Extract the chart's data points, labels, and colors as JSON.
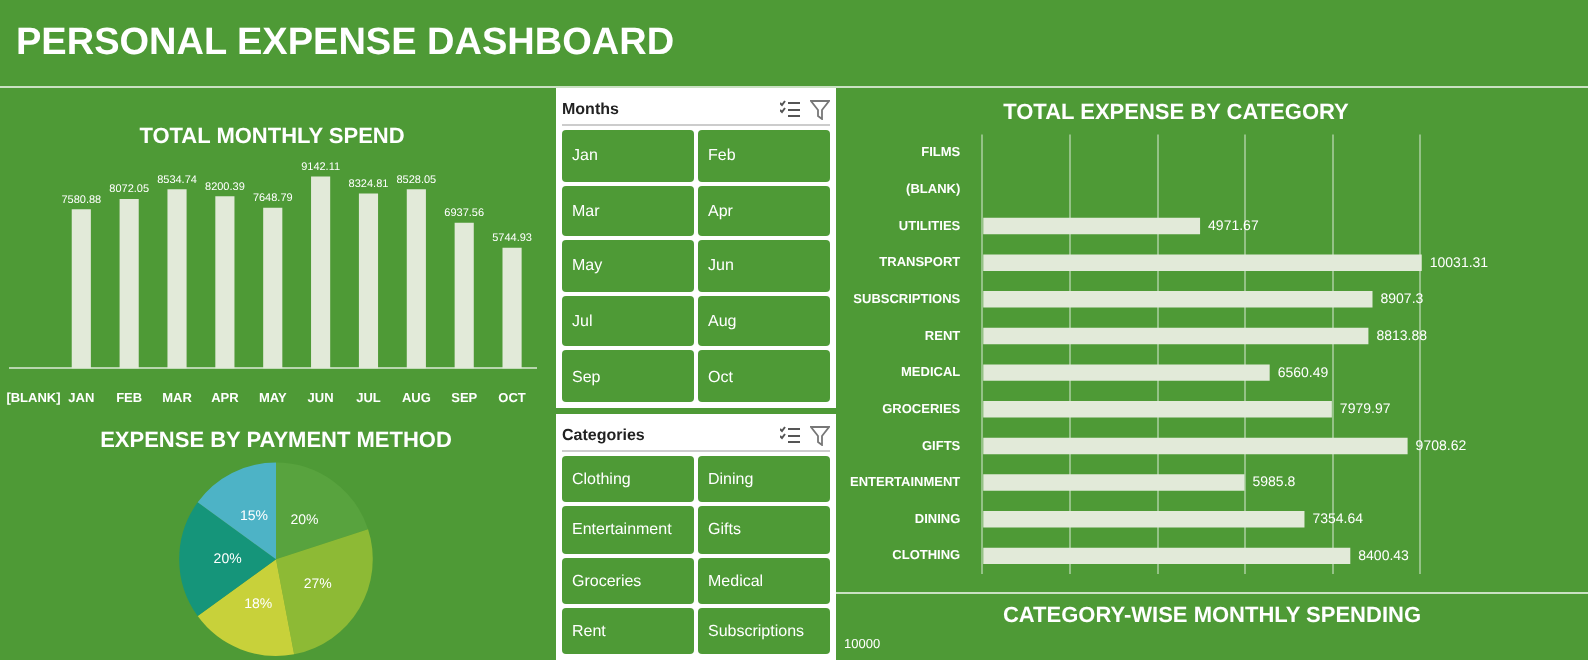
{
  "chart_data": [
    {
      "type": "other",
      "title": "PERSONAL EXPENSE DASHBOARD"
    },
    {
      "type": "bar",
      "title": "TOTAL MONTHLY SPEND",
      "categories": [
        "[BLANK]",
        "JAN",
        "FEB",
        "MAR",
        "APR",
        "MAY",
        "JUN",
        "JUL",
        "AUG",
        "SEP",
        "OCT"
      ],
      "values": [
        null,
        7580.88,
        8072.05,
        8534.74,
        8200.39,
        7648.79,
        9142.11,
        8324.81,
        8528.05,
        6937.56,
        5744.93
      ],
      "color": "#e2ead9",
      "data_labels": true
    },
    {
      "type": "other",
      "title": "Months",
      "annotations": [
        "Jan",
        "Feb",
        "Mar",
        "Apr",
        "May",
        "Jun",
        "Jul",
        "Aug",
        "Sep",
        "Oct"
      ]
    },
    {
      "type": "bar",
      "orientation": "horizontal",
      "title": "TOTAL EXPENSE BY CATEGORY",
      "categories": [
        "FILMS",
        "(BLANK)",
        "UTILITIES",
        "TRANSPORT",
        "SUBSCRIPTIONS",
        "RENT",
        "MEDICAL",
        "GROCERIES",
        "GIFTS",
        "ENTERTAINMENT",
        "DINING",
        "CLOTHING"
      ],
      "values": [
        null,
        null,
        4971.67,
        10031.31,
        8907.3,
        8813.88,
        6560.49,
        7979.97,
        9708.62,
        5985.8,
        7354.64,
        8400.43
      ],
      "color": "#e2ead9",
      "xticks": [
        {
          "value": 0,
          "label": null
        },
        {
          "value": 2000,
          "label": null
        },
        {
          "value": 4000,
          "label": null
        },
        {
          "value": 6000,
          "label": null
        },
        {
          "value": 8000,
          "label": null
        },
        {
          "value": 10000,
          "label": null
        }
      ],
      "grid": "x",
      "tick_labels": "y",
      "data_labels": true
    },
    {
      "type": "pie",
      "title": "EXPENSE BY PAYMENT METHOD",
      "categories": [
        null,
        null,
        null,
        null,
        null
      ],
      "values": [
        20,
        27,
        18,
        20,
        15
      ],
      "colors": [
        "#58a33e",
        "#8dba35",
        "#c8d13a",
        "#15957a",
        "#4db3c6"
      ],
      "value_labels": [
        "20%",
        "27%",
        "18%",
        "20%",
        "15%"
      ]
    },
    {
      "type": "other",
      "title": "Categories",
      "annotations": [
        "Clothing",
        "Dining",
        "Entertainment",
        "Gifts",
        "Groceries",
        "Medical",
        "Rent",
        "Subscriptions"
      ]
    },
    {
      "type": "other",
      "title": "CATEGORY-WISE MONTHLY SPENDING",
      "annotations": [
        "10000"
      ]
    }
  ]
}
